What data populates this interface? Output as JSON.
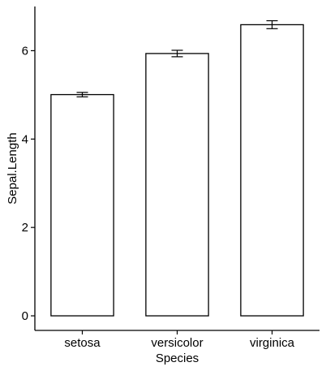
{
  "chart_data": {
    "type": "bar",
    "categories": [
      "setosa",
      "versicolor",
      "virginica"
    ],
    "values": [
      5.006,
      5.936,
      6.588
    ],
    "error": [
      0.05,
      0.073,
      0.09
    ],
    "title": "",
    "xlabel": "Species",
    "ylabel": "Sepal.Length",
    "ylim": [
      -0.33,
      7.0
    ],
    "yticks": [
      0,
      2,
      4,
      6
    ],
    "ytick_labels": [
      "0",
      "2",
      "4",
      "6"
    ],
    "grid": false,
    "legend": "none",
    "colors": {
      "bar_fill": "#ffffff",
      "bar_stroke": "#000000",
      "axis": "#000000"
    }
  }
}
